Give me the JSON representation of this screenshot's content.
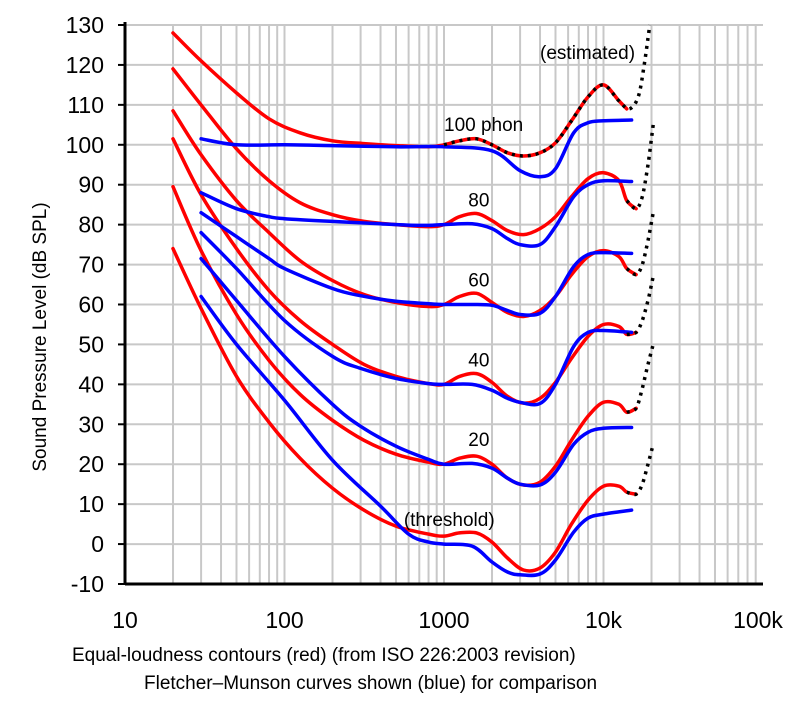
{
  "caption": {
    "line1": "Equal-loudness contours (red) (from ISO 226:2003 revision)",
    "line2": "Fletcher–Munson curves shown (blue) for comparison"
  },
  "chart_data": {
    "type": "line",
    "title": "",
    "xlabel": "",
    "ylabel": "Sound Pressure Level (dB SPL)",
    "x_scale": "log",
    "xlim": [
      10,
      100000
    ],
    "ylim": [
      -10,
      130
    ],
    "grid": true,
    "x_tick_labels": [
      {
        "value": 10,
        "label": "10"
      },
      {
        "value": 100,
        "label": "100"
      },
      {
        "value": 1000,
        "label": "1000"
      },
      {
        "value": 10000,
        "label": "10k"
      },
      {
        "value": 100000,
        "label": "100k"
      }
    ],
    "y_ticks": [
      -10,
      0,
      10,
      20,
      30,
      40,
      50,
      60,
      70,
      80,
      90,
      100,
      110,
      120,
      130
    ],
    "colors": {
      "iso": "#ff0000",
      "fletcher": "#0000ff",
      "estimated": "#000000"
    },
    "annotations": [
      {
        "text": "(estimated)",
        "x": 4000,
        "y": 121.5
      },
      {
        "text": "100 phon",
        "x": 1000,
        "y": 103.5
      },
      {
        "text": "80",
        "x": 1420,
        "y": 84.5
      },
      {
        "text": "60",
        "x": 1420,
        "y": 64.5
      },
      {
        "text": "40",
        "x": 1420,
        "y": 44.5
      },
      {
        "text": "20",
        "x": 1420,
        "y": 24.5
      },
      {
        "text": "(threshold)",
        "x": 560,
        "y": 4.5
      }
    ],
    "series": [
      {
        "group": "iso",
        "points": [
          [
            20,
            128
          ],
          [
            30,
            121
          ],
          [
            50,
            113
          ],
          [
            80,
            106.5
          ],
          [
            125,
            103
          ],
          [
            200,
            101
          ],
          [
            315,
            100.3
          ],
          [
            500,
            99.8
          ],
          [
            800,
            99.5
          ],
          [
            1000,
            100
          ],
          [
            1250,
            101
          ],
          [
            1600,
            101.5
          ],
          [
            2000,
            100
          ],
          [
            2500,
            98
          ],
          [
            3150,
            97.2
          ],
          [
            4000,
            98
          ],
          [
            5000,
            100.5
          ],
          [
            6300,
            106
          ],
          [
            8000,
            112
          ],
          [
            10000,
            115
          ],
          [
            12500,
            111
          ],
          [
            14000,
            109
          ]
        ]
      },
      {
        "group": "iso",
        "points": [
          [
            20,
            119
          ],
          [
            30,
            110
          ],
          [
            50,
            99
          ],
          [
            80,
            91
          ],
          [
            125,
            85.5
          ],
          [
            200,
            82.5
          ],
          [
            315,
            80.8
          ],
          [
            500,
            80
          ],
          [
            800,
            79.5
          ],
          [
            1000,
            80
          ],
          [
            1250,
            82
          ],
          [
            1600,
            82.8
          ],
          [
            2000,
            81
          ],
          [
            2500,
            78.5
          ],
          [
            3150,
            77.5
          ],
          [
            4000,
            79
          ],
          [
            5000,
            82
          ],
          [
            6300,
            87
          ],
          [
            8000,
            91.5
          ],
          [
            10000,
            93
          ],
          [
            12500,
            91
          ],
          [
            14000,
            86
          ],
          [
            16000,
            84
          ]
        ]
      },
      {
        "group": "iso",
        "points": [
          [
            20,
            108.5
          ],
          [
            30,
            97.5
          ],
          [
            50,
            86
          ],
          [
            80,
            78
          ],
          [
            125,
            71
          ],
          [
            200,
            66
          ],
          [
            315,
            62.5
          ],
          [
            500,
            60.5
          ],
          [
            800,
            59.5
          ],
          [
            1000,
            60
          ],
          [
            1250,
            62
          ],
          [
            1600,
            62.8
          ],
          [
            2000,
            60.5
          ],
          [
            2500,
            58
          ],
          [
            3150,
            57
          ],
          [
            4000,
            58.5
          ],
          [
            5000,
            62
          ],
          [
            6300,
            67.5
          ],
          [
            8000,
            72
          ],
          [
            10000,
            73.5
          ],
          [
            12500,
            72
          ],
          [
            14000,
            69
          ],
          [
            16000,
            67.5
          ]
        ]
      },
      {
        "group": "iso",
        "points": [
          [
            20,
            101.5
          ],
          [
            30,
            87.5
          ],
          [
            50,
            74
          ],
          [
            80,
            63.5
          ],
          [
            125,
            56
          ],
          [
            200,
            50
          ],
          [
            315,
            45
          ],
          [
            500,
            42
          ],
          [
            800,
            40.2
          ],
          [
            1000,
            40
          ],
          [
            1250,
            42
          ],
          [
            1600,
            42.7
          ],
          [
            2000,
            40.5
          ],
          [
            2500,
            37
          ],
          [
            3150,
            35.3
          ],
          [
            4000,
            36.5
          ],
          [
            5000,
            40.5
          ],
          [
            6300,
            46.5
          ],
          [
            8000,
            52
          ],
          [
            10000,
            55
          ],
          [
            12500,
            54.5
          ],
          [
            14000,
            52.5
          ],
          [
            16000,
            53
          ]
        ]
      },
      {
        "group": "iso",
        "points": [
          [
            20,
            89.5
          ],
          [
            30,
            73.5
          ],
          [
            50,
            57.5
          ],
          [
            80,
            46
          ],
          [
            125,
            37.5
          ],
          [
            200,
            31
          ],
          [
            315,
            26
          ],
          [
            500,
            22.5
          ],
          [
            800,
            20.5
          ],
          [
            1000,
            20
          ],
          [
            1250,
            21.5
          ],
          [
            1600,
            22
          ],
          [
            2000,
            20
          ],
          [
            2500,
            16.5
          ],
          [
            3150,
            14.8
          ],
          [
            4000,
            15.5
          ],
          [
            5000,
            19.5
          ],
          [
            6300,
            26
          ],
          [
            8000,
            32
          ],
          [
            10000,
            35.5
          ],
          [
            12500,
            35
          ],
          [
            14000,
            33
          ],
          [
            16000,
            34
          ]
        ]
      },
      {
        "group": "iso",
        "points": [
          [
            20,
            74
          ],
          [
            30,
            59
          ],
          [
            50,
            42
          ],
          [
            80,
            30.5
          ],
          [
            125,
            21.5
          ],
          [
            200,
            14
          ],
          [
            315,
            8.5
          ],
          [
            500,
            4.5
          ],
          [
            800,
            2.5
          ],
          [
            1000,
            2
          ],
          [
            1250,
            2.8
          ],
          [
            1600,
            2.8
          ],
          [
            2000,
            0.5
          ],
          [
            2500,
            -3.5
          ],
          [
            3150,
            -6.5
          ],
          [
            4000,
            -6
          ],
          [
            5000,
            -2
          ],
          [
            6300,
            5
          ],
          [
            8000,
            11
          ],
          [
            10000,
            14.5
          ],
          [
            12500,
            14.5
          ],
          [
            14000,
            13
          ],
          [
            16000,
            12.5
          ]
        ]
      },
      {
        "group": "fletcher",
        "points": [
          [
            30,
            101.5
          ],
          [
            50,
            100
          ],
          [
            100,
            100
          ],
          [
            200,
            99.8
          ],
          [
            500,
            99.5
          ],
          [
            1000,
            99.5
          ],
          [
            2000,
            98.5
          ],
          [
            3000,
            93.5
          ],
          [
            4000,
            92
          ],
          [
            5000,
            94
          ],
          [
            6500,
            103
          ],
          [
            8000,
            105.5
          ],
          [
            10000,
            106
          ],
          [
            15000,
            106.2
          ]
        ]
      },
      {
        "group": "fletcher",
        "points": [
          [
            30,
            88
          ],
          [
            50,
            84
          ],
          [
            80,
            82
          ],
          [
            100,
            81.5
          ],
          [
            200,
            80.8
          ],
          [
            400,
            80.2
          ],
          [
            700,
            79.8
          ],
          [
            1000,
            80
          ],
          [
            1500,
            80.2
          ],
          [
            2000,
            79
          ],
          [
            2500,
            76.5
          ],
          [
            3000,
            75
          ],
          [
            4000,
            75
          ],
          [
            5000,
            79.5
          ],
          [
            6500,
            87
          ],
          [
            8000,
            90
          ],
          [
            10000,
            91
          ],
          [
            15000,
            90.8
          ]
        ]
      },
      {
        "group": "fletcher",
        "points": [
          [
            30,
            83
          ],
          [
            50,
            77
          ],
          [
            80,
            71.5
          ],
          [
            100,
            69
          ],
          [
            200,
            64
          ],
          [
            300,
            62.2
          ],
          [
            500,
            60.8
          ],
          [
            800,
            60.2
          ],
          [
            1000,
            60
          ],
          [
            1500,
            60
          ],
          [
            2000,
            59.8
          ],
          [
            2500,
            58.5
          ],
          [
            3000,
            57.5
          ],
          [
            4000,
            57.8
          ],
          [
            5000,
            62
          ],
          [
            6500,
            69.5
          ],
          [
            8000,
            72.5
          ],
          [
            10000,
            73
          ],
          [
            15000,
            72.8
          ]
        ]
      },
      {
        "group": "fletcher",
        "points": [
          [
            30,
            78
          ],
          [
            50,
            69
          ],
          [
            100,
            56
          ],
          [
            200,
            47
          ],
          [
            300,
            44
          ],
          [
            500,
            41.5
          ],
          [
            800,
            40.2
          ],
          [
            1000,
            40
          ],
          [
            1500,
            40
          ],
          [
            2000,
            38.5
          ],
          [
            2500,
            36.5
          ],
          [
            3000,
            35.5
          ],
          [
            4000,
            35.2
          ],
          [
            5000,
            40
          ],
          [
            6500,
            49.5
          ],
          [
            8000,
            53
          ],
          [
            10000,
            53.5
          ],
          [
            15000,
            53
          ]
        ]
      },
      {
        "group": "fletcher",
        "points": [
          [
            30,
            71.5
          ],
          [
            50,
            61
          ],
          [
            100,
            47
          ],
          [
            200,
            35
          ],
          [
            300,
            29.5
          ],
          [
            500,
            24.5
          ],
          [
            800,
            21.2
          ],
          [
            1000,
            20
          ],
          [
            1500,
            20.2
          ],
          [
            2000,
            19
          ],
          [
            2500,
            16.5
          ],
          [
            3000,
            15
          ],
          [
            4000,
            14.8
          ],
          [
            5000,
            18
          ],
          [
            6500,
            25
          ],
          [
            8000,
            28
          ],
          [
            10000,
            29
          ],
          [
            15000,
            29.2
          ]
        ]
      },
      {
        "group": "fletcher",
        "points": [
          [
            30,
            62
          ],
          [
            50,
            50
          ],
          [
            100,
            36
          ],
          [
            200,
            21
          ],
          [
            400,
            9.5
          ],
          [
            600,
            2.5
          ],
          [
            800,
            0.5
          ],
          [
            1000,
            0
          ],
          [
            1500,
            -0.5
          ],
          [
            2000,
            -4.5
          ],
          [
            2500,
            -7
          ],
          [
            3000,
            -7.7
          ],
          [
            4000,
            -7.5
          ],
          [
            5000,
            -4
          ],
          [
            6500,
            3
          ],
          [
            8000,
            6.5
          ],
          [
            10000,
            7.5
          ],
          [
            15000,
            8.5
          ]
        ]
      },
      {
        "group": "estimated",
        "points": [
          [
            1000,
            100
          ],
          [
            1250,
            101
          ],
          [
            1600,
            101.5
          ],
          [
            2000,
            100
          ],
          [
            2500,
            98
          ],
          [
            3150,
            97.2
          ],
          [
            4000,
            98
          ],
          [
            5000,
            100.5
          ],
          [
            6300,
            106
          ],
          [
            8000,
            112
          ],
          [
            10000,
            115
          ],
          [
            12500,
            111
          ],
          [
            14500,
            109
          ],
          [
            16500,
            112
          ],
          [
            18000,
            120
          ],
          [
            19500,
            130
          ]
        ]
      },
      {
        "group": "estimated",
        "points": [
          [
            14000,
            86
          ],
          [
            16000,
            84
          ],
          [
            17500,
            87
          ],
          [
            19000,
            95
          ],
          [
            20500,
            105
          ]
        ]
      },
      {
        "group": "estimated",
        "points": [
          [
            14000,
            69
          ],
          [
            16000,
            67.5
          ],
          [
            17500,
            70
          ],
          [
            19000,
            76
          ],
          [
            20500,
            83
          ]
        ]
      },
      {
        "group": "estimated",
        "points": [
          [
            14000,
            52.5
          ],
          [
            16000,
            53
          ],
          [
            17500,
            56
          ],
          [
            19000,
            61
          ],
          [
            20500,
            67
          ]
        ]
      },
      {
        "group": "estimated",
        "points": [
          [
            14000,
            33
          ],
          [
            16000,
            34
          ],
          [
            17500,
            39
          ],
          [
            19000,
            45
          ],
          [
            20500,
            50
          ]
        ]
      },
      {
        "group": "estimated",
        "points": [
          [
            14000,
            13
          ],
          [
            16000,
            12.5
          ],
          [
            17500,
            15
          ],
          [
            19000,
            20
          ],
          [
            20500,
            25
          ]
        ]
      }
    ]
  }
}
